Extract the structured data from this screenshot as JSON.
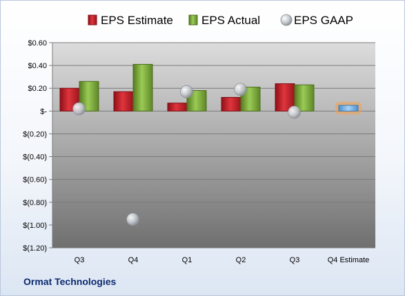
{
  "company_name": "Ormat Technologies",
  "colors": {
    "estimate": "#c0222c",
    "actual": "#7aa53a",
    "gaap": "#b9bec6",
    "q4_estimate": "#7fb7e8",
    "q4_estimate_glow": "#f6a14a"
  },
  "chart_data": {
    "type": "bar",
    "title": "",
    "xlabel": "",
    "ylabel": "",
    "categories": [
      "Q3",
      "Q4",
      "Q1",
      "Q2",
      "Q3",
      "Q4 Estimate"
    ],
    "series": [
      {
        "name": "EPS Estimate",
        "kind": "bar",
        "values": [
          0.2,
          0.17,
          0.07,
          0.12,
          0.24,
          null
        ]
      },
      {
        "name": "EPS Actual",
        "kind": "bar",
        "values": [
          0.26,
          0.41,
          0.18,
          0.21,
          0.23,
          null
        ]
      },
      {
        "name": "EPS GAAP",
        "kind": "marker",
        "values": [
          0.02,
          -0.95,
          0.17,
          0.19,
          -0.01,
          null
        ]
      }
    ],
    "q4_estimate_value": 0.05,
    "ylim": [
      -1.2,
      0.6
    ],
    "ytick_values": [
      0.6,
      0.4,
      0.2,
      0,
      -0.2,
      -0.4,
      -0.6,
      -0.8,
      -1.0,
      -1.2
    ],
    "ytick_labels": [
      "$0.60",
      "$0.40",
      "$0.20",
      "$-",
      "$(0.20)",
      "$(0.40)",
      "$(0.60)",
      "$(0.80)",
      "$(1.00)",
      "$(1.20)"
    ],
    "legend": [
      "EPS Estimate",
      "EPS Actual",
      "EPS GAAP"
    ],
    "legend_position": "top",
    "grid": true
  }
}
